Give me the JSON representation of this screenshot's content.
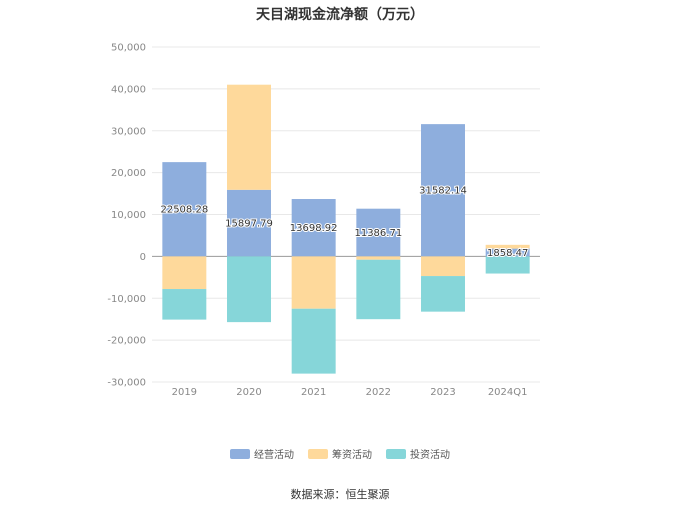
{
  "title": "天目湖现金流净额（万元）",
  "source": "数据来源：恒生聚源",
  "colors": {
    "operating": "#8eaedd",
    "financing": "#fed99b",
    "investing": "#86d6d9",
    "grid": "#e8e8e8",
    "axis_text": "#888888",
    "zero_line": "#999999"
  },
  "chart_data": {
    "type": "bar",
    "stacked": true,
    "categories": [
      "2019",
      "2020",
      "2021",
      "2022",
      "2023",
      "2024Q1"
    ],
    "ylim": [
      -30000,
      50000
    ],
    "yticks": [
      50000,
      40000,
      30000,
      20000,
      10000,
      0,
      -10000,
      -20000,
      -30000
    ],
    "ytick_labels": [
      "50,000",
      "40,000",
      "30,000",
      "20,000",
      "10,000",
      "0",
      "-10,000",
      "-20,000",
      "-30,000"
    ],
    "series": [
      {
        "name": "经营活动",
        "color_key": "operating",
        "values": [
          22508.28,
          15897.79,
          13698.92,
          11386.71,
          31582.14,
          1858.47
        ],
        "labels": [
          "22508.28",
          "15897.79",
          "13698.92",
          "11386.71",
          "31582.14",
          "1858.47"
        ]
      },
      {
        "name": "筹资活动",
        "color_key": "financing",
        "values": [
          -7800,
          25100,
          -12500,
          -800,
          -4700,
          900
        ]
      },
      {
        "name": "投资活动",
        "color_key": "investing",
        "values": [
          -7300,
          -15700,
          -15500,
          -14200,
          -8500,
          -4100
        ]
      }
    ],
    "legend_position": "bottom",
    "grid": true
  }
}
